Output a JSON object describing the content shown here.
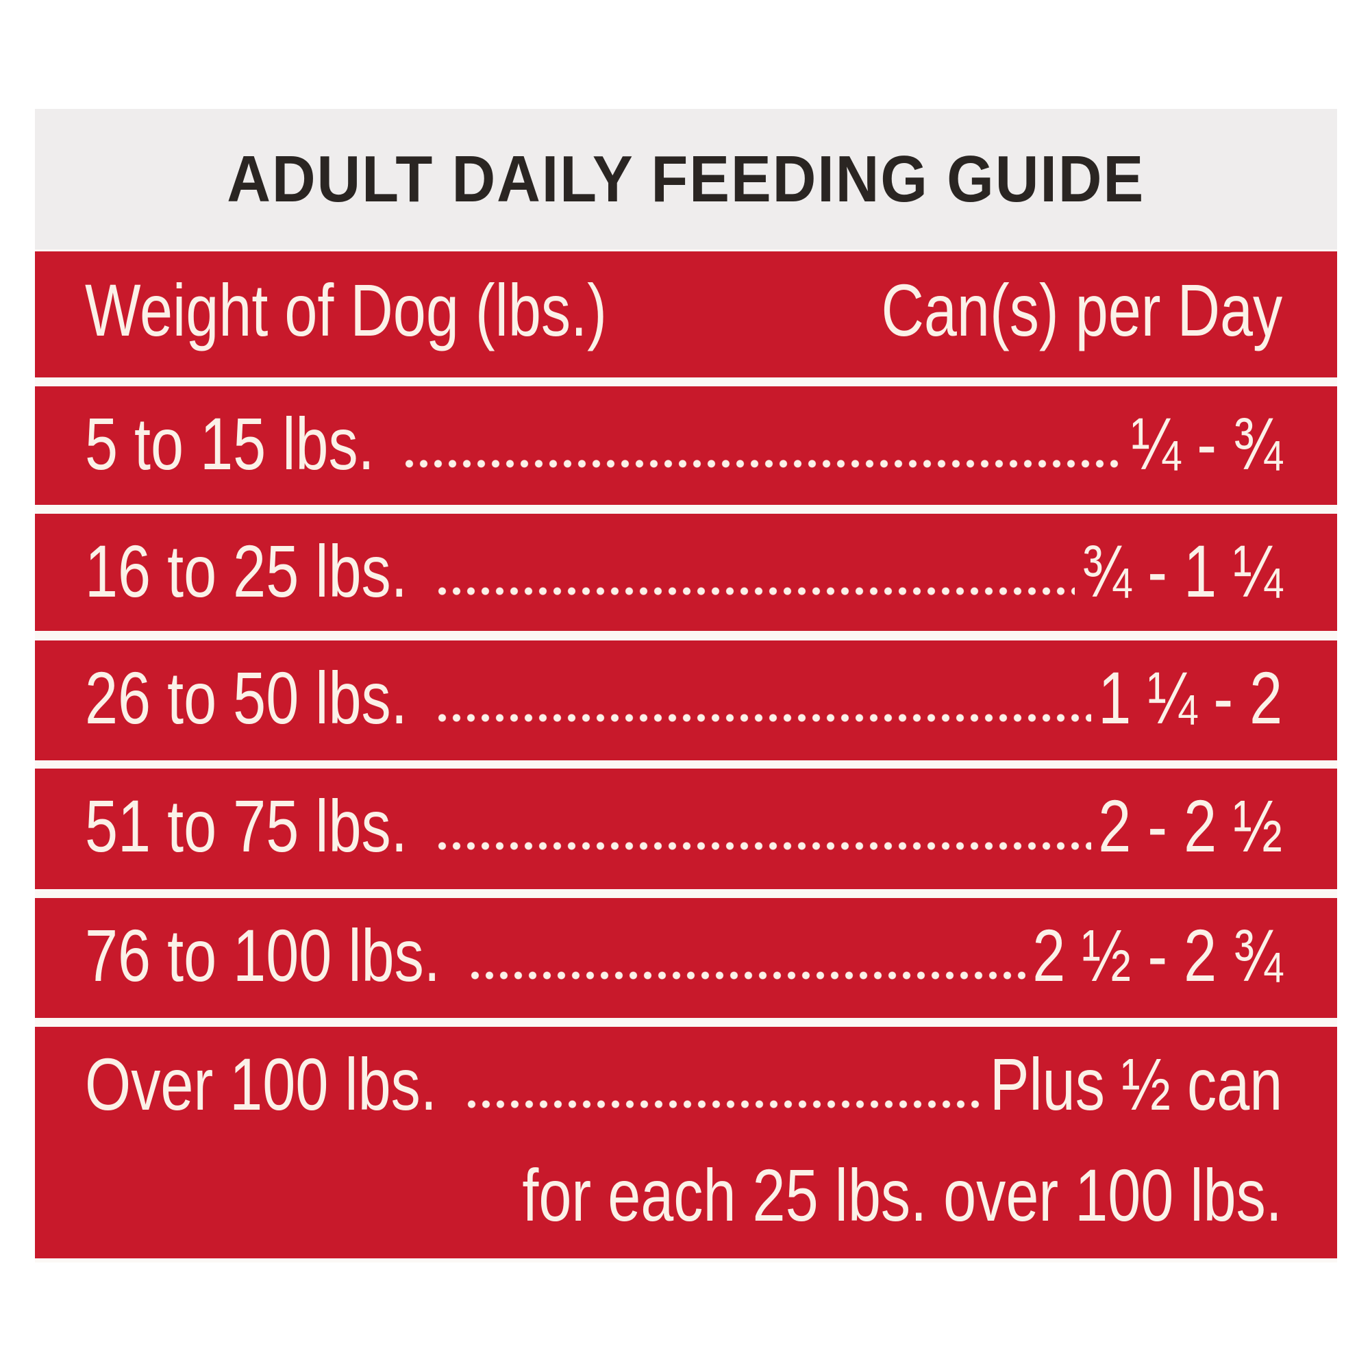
{
  "title": "ADULT DAILY FEEDING GUIDE",
  "header": {
    "weight": "Weight of Dog (lbs.)",
    "amount": "Can(s) per Day"
  },
  "rows": [
    {
      "weight": "5 to 15 lbs.",
      "amount": "¼ - ¾"
    },
    {
      "weight": "16 to 25 lbs.",
      "amount": "¾ - 1 ¼"
    },
    {
      "weight": "26 to 50 lbs.",
      "amount": "1 ¼ - 2"
    },
    {
      "weight": "51 to 75 lbs.",
      "amount": "2 - 2 ½"
    },
    {
      "weight": "76 to 100 lbs.",
      "amount": "2 ½ - 2 ¾"
    },
    {
      "weight": "Over 100 lbs.",
      "amount": "Plus ½ can",
      "note": "for each 25 lbs. over 100 lbs."
    }
  ]
}
